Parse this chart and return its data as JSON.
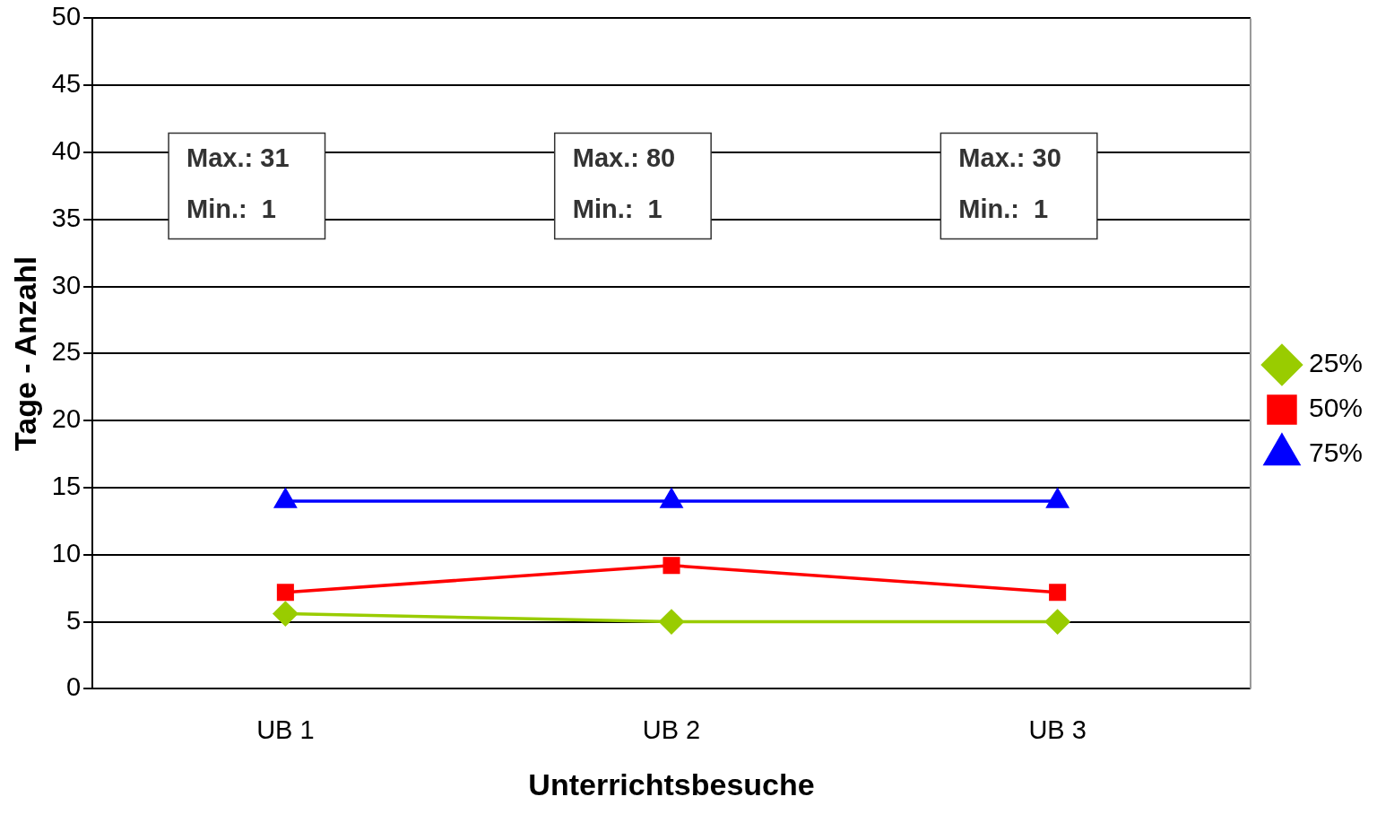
{
  "chart_data": {
    "type": "line",
    "xlabel": "Unterrichtsbesuche",
    "ylabel": "Tage - Anzahl",
    "categories": [
      "UB 1",
      "UB 2",
      "UB 3"
    ],
    "series": [
      {
        "name": "25%",
        "color": "#99cc00",
        "marker": "diamond",
        "values": [
          5.6,
          5,
          5
        ]
      },
      {
        "name": "50%",
        "color": "#ff0000",
        "marker": "square",
        "values": [
          7.2,
          9.2,
          7.2
        ]
      },
      {
        "name": "75%",
        "color": "#0000ff",
        "marker": "triangle",
        "values": [
          14,
          14,
          14
        ]
      }
    ],
    "ylim": [
      0,
      50
    ],
    "yticks": [
      0,
      5,
      10,
      15,
      20,
      25,
      30,
      35,
      40,
      45,
      50
    ],
    "grid": "y",
    "legend": "right",
    "line_style": "solid",
    "annotations": [
      "Max.: 31\nMin.:  1",
      "Max.: 80\nMin.:  1",
      "Max.: 30\nMin.:  1"
    ]
  }
}
